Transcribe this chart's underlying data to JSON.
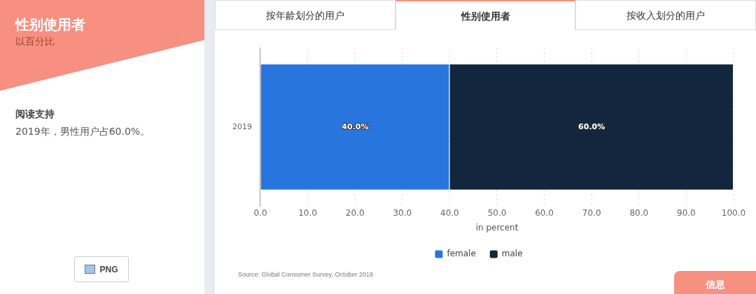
{
  "chart_data": {
    "type": "bar",
    "orientation": "horizontal",
    "stacked": true,
    "title": "性别使用者",
    "subtitle": "以百分比",
    "xlabel": "in percent",
    "categories": [
      "2019"
    ],
    "series": [
      {
        "name": "female",
        "color": "#2876dd",
        "values": [
          40
        ],
        "value_labels": [
          "40.0%"
        ]
      },
      {
        "name": "male",
        "color": "#12263d",
        "values": [
          60
        ],
        "value_labels": [
          "60.0%"
        ]
      }
    ],
    "xlim": [
      0,
      100
    ],
    "xticks": [
      {
        "value": 0,
        "label": "0.0"
      },
      {
        "value": 10,
        "label": "10.0"
      },
      {
        "value": 20,
        "label": "20.0"
      },
      {
        "value": 30,
        "label": "30.0"
      },
      {
        "value": 40,
        "label": "40.0"
      },
      {
        "value": 50,
        "label": "50.0"
      },
      {
        "value": 60,
        "label": "60.0"
      },
      {
        "value": 70,
        "label": "70.0"
      },
      {
        "value": 80,
        "label": "80.0"
      },
      {
        "value": 90,
        "label": "90.0"
      },
      {
        "value": 100,
        "label": "100.0"
      }
    ],
    "grid": "x",
    "legend": "bottom",
    "annotations": [
      "按年龄划分的用户",
      "性别使用者",
      "按收入划分的用户",
      "阅读支持",
      "2019年，男性用户占60.0%。",
      "PNG",
      "Source: Global Consumer Survey, October 2019",
      "信息"
    ]
  }
}
